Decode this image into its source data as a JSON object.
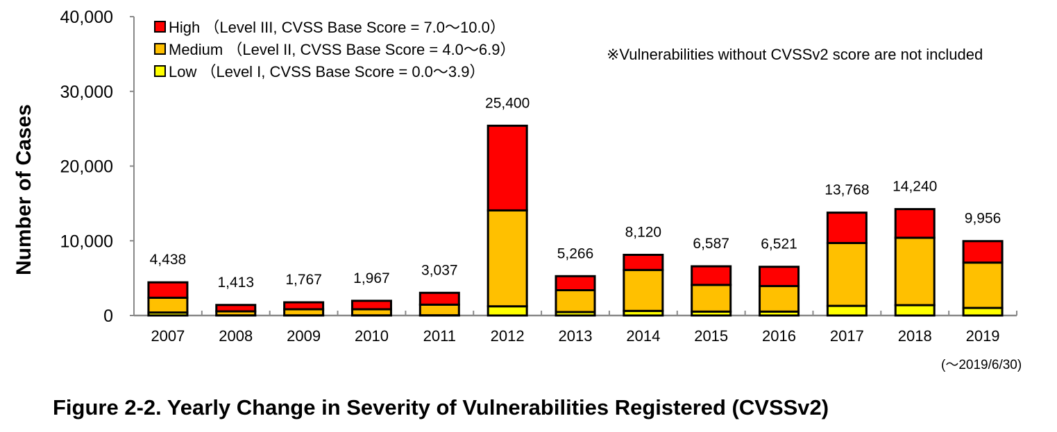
{
  "chart_data": {
    "type": "bar",
    "stacked": true,
    "title": "Figure 2-2.  Yearly Change in Severity of Vulnerabilities Registered (CVSSv2)",
    "xlabel": "",
    "ylabel": "Number of Cases",
    "ylim": [
      0,
      40000
    ],
    "yticks": [
      "0",
      "10,000",
      "20,000",
      "30,000",
      "40,000"
    ],
    "ytick_values": [
      0,
      10000,
      20000,
      30000,
      40000
    ],
    "categories": [
      "2007",
      "2008",
      "2009",
      "2010",
      "2011",
      "2012",
      "2013",
      "2014",
      "2015",
      "2016",
      "2017",
      "2018",
      "2019"
    ],
    "period_note": "(～2019/6/30)",
    "note": "※Vulnerabilities without CVSSv2 score are not included",
    "totals": [
      "4,438",
      "1,413",
      "1,767",
      "1,967",
      "3,037",
      "25,400",
      "5,266",
      "8,120",
      "6,587",
      "6,521",
      "13,768",
      "14,240",
      "9,956"
    ],
    "series": [
      {
        "name": "Low",
        "legend": "Low （Level I, CVSS Base Score = 0.0～3.9）",
        "color": "#ffff00",
        "values": [
          402,
          20,
          20,
          20,
          30,
          1232,
          462,
          616,
          523,
          523,
          1293,
          1386,
          1016
        ]
      },
      {
        "name": "Medium",
        "legend": "Medium （Level II, CVSS Base Score = 4.0～6.9）",
        "color": "#ffc000",
        "values": [
          1977,
          536,
          814,
          814,
          1422,
          12839,
          2925,
          5480,
          3572,
          3418,
          8406,
          9021,
          6066
        ]
      },
      {
        "name": "High",
        "legend": "High （Level III, CVSS Base Score = 7.0～10.0）",
        "color": "#ff0000",
        "values": [
          2059,
          857,
          933,
          1133,
          1585,
          11329,
          1879,
          2024,
          2492,
          2580,
          4069,
          3833,
          2874
        ]
      }
    ],
    "grid": false,
    "legend_position": "top-left"
  }
}
